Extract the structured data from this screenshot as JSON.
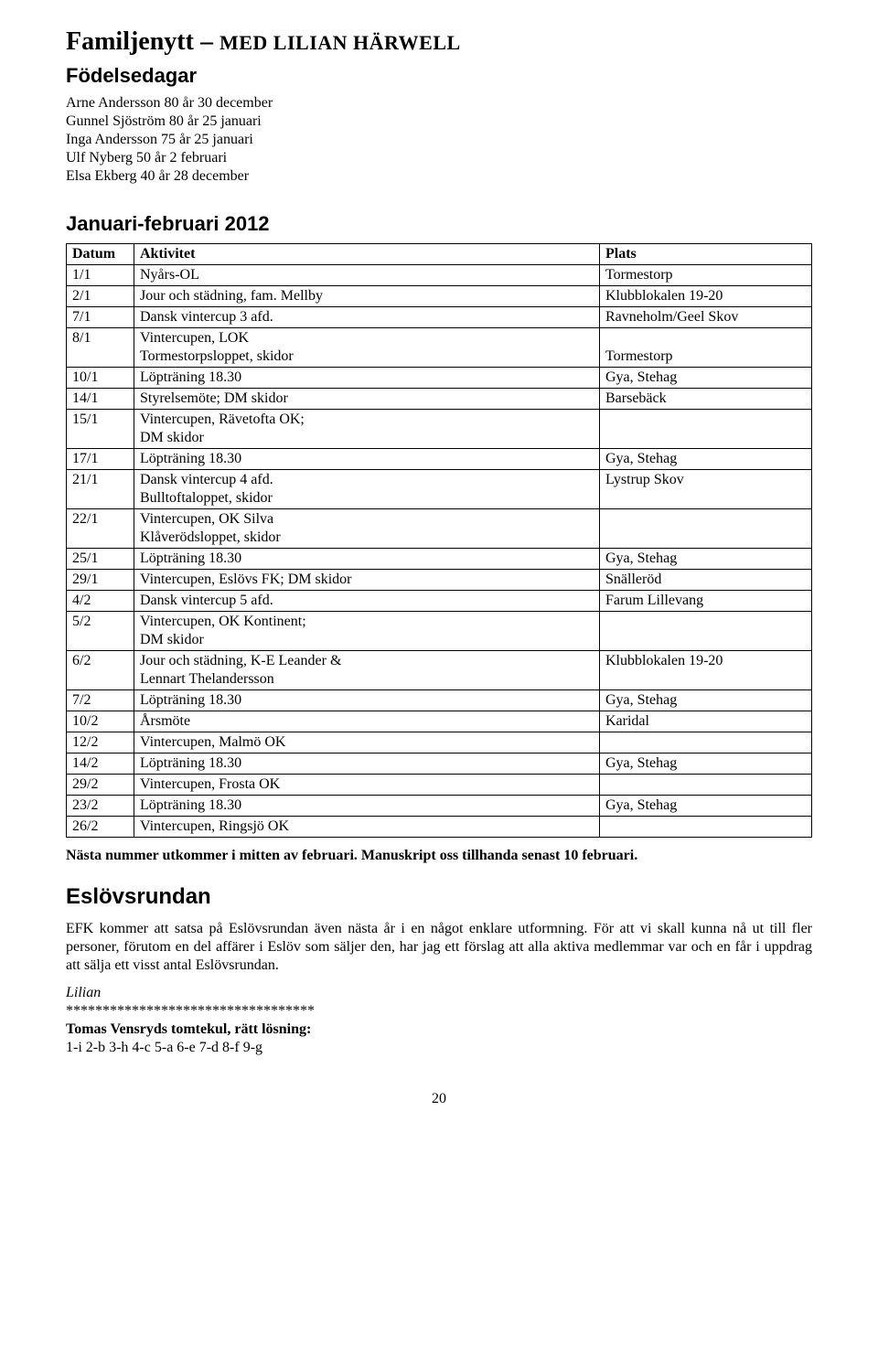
{
  "header": {
    "title_prefix": "Familjenytt – ",
    "title_smallcaps": "MED LILIAN HÄRWELL"
  },
  "birthdays": {
    "heading": "Födelsedagar",
    "lines": [
      "Arne Andersson 80 år 30 december",
      "Gunnel Sjöström 80 år 25 januari",
      "Inga Andersson 75 år 25 januari",
      "Ulf Nyberg 50 år 2 februari",
      "Elsa Ekberg 40 år 28 december"
    ]
  },
  "schedule": {
    "heading": "Januari-februari 2012",
    "columns": [
      "Datum",
      "Aktivitet",
      "Plats"
    ],
    "rows": [
      [
        "1/1",
        "Nyårs-OL",
        "Tormestorp"
      ],
      [
        "2/1",
        "Jour och städning, fam. Mellby",
        "Klubblokalen 19-20"
      ],
      [
        "7/1",
        "Dansk vintercup 3 afd.",
        "Ravneholm/Geel Skov"
      ],
      [
        "8/1",
        "Vintercupen, LOK\nTormestorpsloppet, skidor",
        "\nTormestorp"
      ],
      [
        "10/1",
        "Löpträning 18.30",
        "Gya, Stehag"
      ],
      [
        "14/1",
        "Styrelsemöte; DM skidor",
        "Barsebäck"
      ],
      [
        "15/1",
        "Vintercupen, Rävetofta OK;\nDM skidor",
        ""
      ],
      [
        "17/1",
        "Löpträning 18.30",
        "Gya, Stehag"
      ],
      [
        "21/1",
        "Dansk vintercup 4 afd.\nBulltoftaloppet, skidor",
        "Lystrup Skov"
      ],
      [
        "22/1",
        "Vintercupen, OK Silva\nKlåverödsloppet, skidor",
        ""
      ],
      [
        "25/1",
        "Löpträning 18.30",
        "Gya, Stehag"
      ],
      [
        "29/1",
        "Vintercupen, Eslövs FK; DM skidor",
        "Snälleröd"
      ],
      [
        "4/2",
        "Dansk vintercup 5 afd.",
        "Farum Lillevang"
      ],
      [
        "5/2",
        "Vintercupen, OK Kontinent;\nDM skidor",
        ""
      ],
      [
        "6/2",
        "Jour och städning, K-E Leander &\nLennart Thelandersson",
        "Klubblokalen 19-20"
      ],
      [
        "7/2",
        "Löpträning 18.30",
        "Gya, Stehag"
      ],
      [
        "10/2",
        "Årsmöte",
        "Karidal"
      ],
      [
        "12/2",
        "Vintercupen, Malmö OK",
        ""
      ],
      [
        "14/2",
        "Löpträning 18.30",
        "Gya, Stehag"
      ],
      [
        "29/2",
        "Vintercupen, Frosta OK",
        ""
      ],
      [
        "23/2",
        "Löpträning 18.30",
        "Gya, Stehag"
      ],
      [
        "26/2",
        "Vintercupen, Ringsjö OK",
        ""
      ]
    ]
  },
  "next_issue": "Nästa nummer utkommer i mitten av februari. Manuskript oss tillhanda senast 10 februari.",
  "eslov": {
    "heading": "Eslövsrundan",
    "body": "EFK kommer att satsa på Eslövsrundan även nästa år i en något enklare utformning. För att vi skall kunna nå ut till fler personer, förutom en del affärer i Eslöv som säljer den, har jag ett förslag att alla aktiva medlemmar var och en får i uppdrag att sälja ett visst antal Eslövsrundan.",
    "signature": "Lilian"
  },
  "stars": "**********************************",
  "puzzle": {
    "heading": "Tomas Vensryds tomtekul, rätt lösning:",
    "solution": "1-i 2-b 3-h 4-c 5-a 6-e 7-d 8-f 9-g"
  },
  "page_number": "20"
}
